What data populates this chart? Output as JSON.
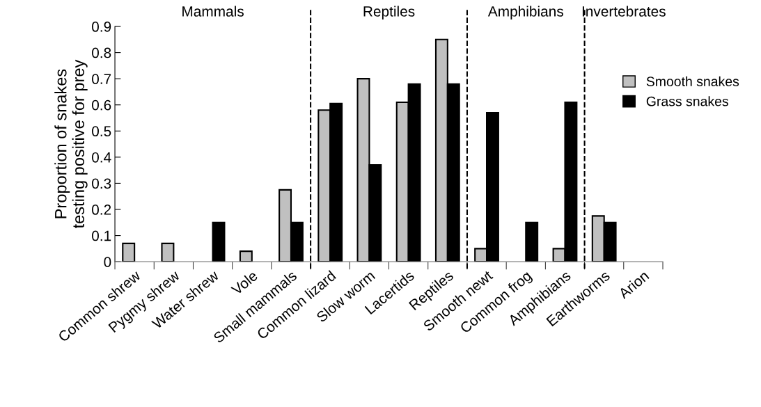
{
  "chart_data": {
    "type": "bar",
    "ylabel": "Proportion of snakes\ntesting positive for prey",
    "categories": [
      "Common shrew",
      "Pygmy shrew",
      "Water shrew",
      "Vole",
      "Small mammals",
      "Common lizard",
      "Slow worm",
      "Lacertids",
      "Reptiles",
      "Smooth newt",
      "Common frog",
      "Amphibians",
      "Earthworms",
      "Arion"
    ],
    "series": [
      {
        "name": "Smooth snakes",
        "color": "#c0c0c0",
        "values": [
          0.07,
          0.07,
          null,
          0.04,
          0.275,
          0.58,
          0.7,
          0.61,
          0.85,
          0.05,
          null,
          0.05,
          0.175,
          null
        ]
      },
      {
        "name": "Grass snakes",
        "color": "#000000",
        "values": [
          null,
          null,
          0.15,
          null,
          0.15,
          0.605,
          0.37,
          0.68,
          0.68,
          0.57,
          0.15,
          0.61,
          0.15,
          null
        ]
      }
    ],
    "ylim": [
      0,
      0.9
    ],
    "yticks": [
      0,
      0.1,
      0.2,
      0.3,
      0.4,
      0.5,
      0.6,
      0.7,
      0.8,
      0.9
    ],
    "annotations": [
      "Mammals",
      "Reptiles",
      "Amphibians",
      "Invertebrates"
    ],
    "legend": "right"
  }
}
